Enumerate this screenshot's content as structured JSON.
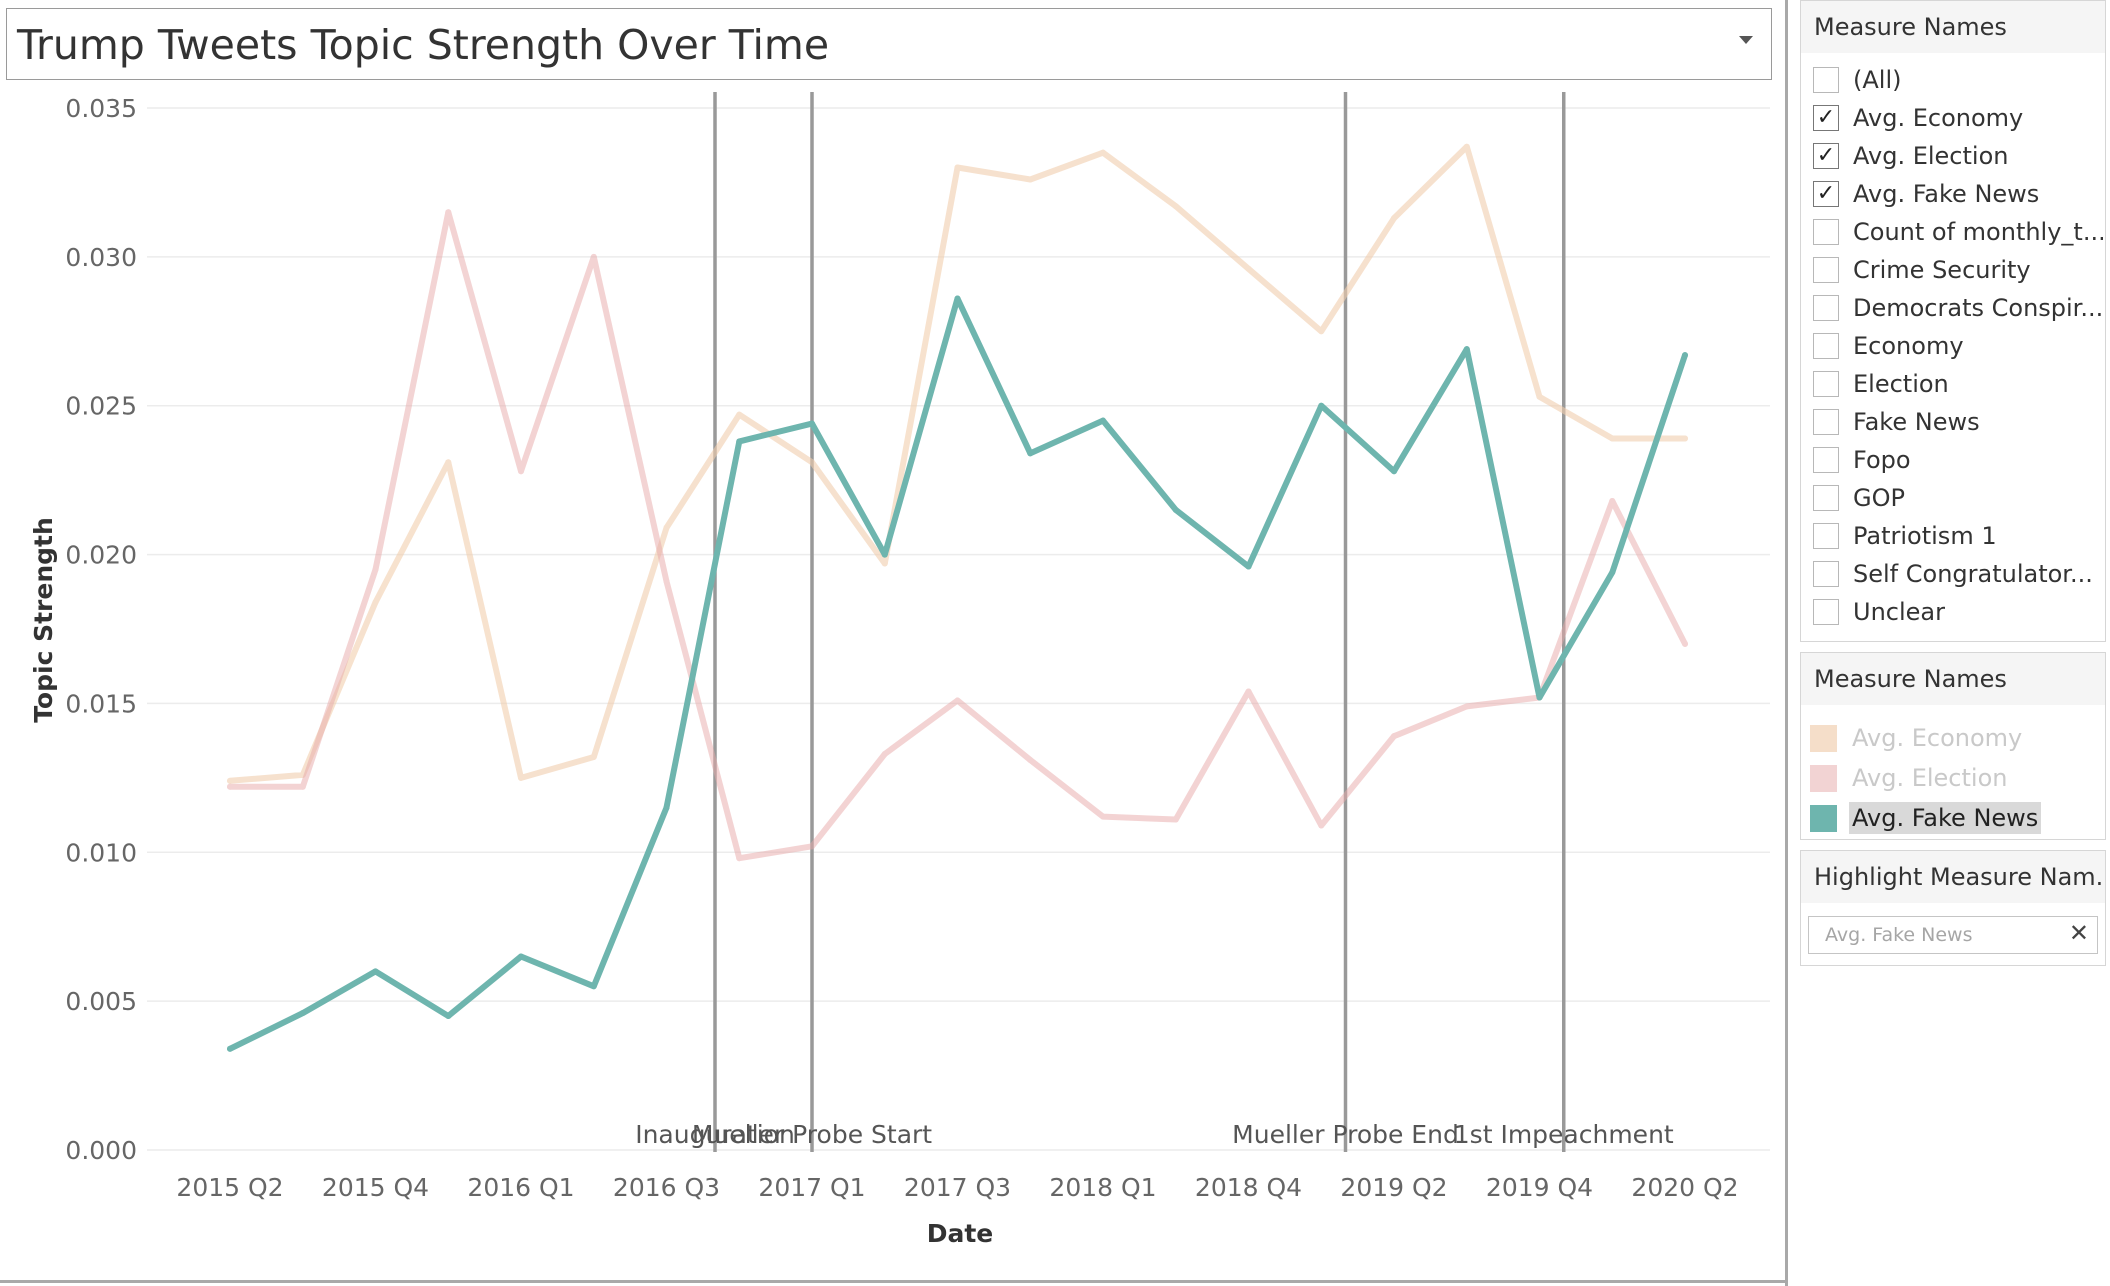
{
  "title": "Trump Tweets Topic Strength Over Time",
  "chart_data": {
    "type": "line",
    "title": "Trump Tweets Topic Strength Over Time",
    "xlabel": "Date",
    "ylabel": "Topic Strength",
    "ylim": [
      0,
      0.035
    ],
    "grid": true,
    "x_tick_labels": [
      "2015 Q2",
      "2015 Q4",
      "2016 Q1",
      "2016 Q3",
      "2017 Q1",
      "2017 Q3",
      "2018 Q1",
      "2018 Q4",
      "2019 Q2",
      "2019 Q4",
      "2020 Q2"
    ],
    "y_tick_labels": [
      "0.000",
      "0.005",
      "0.010",
      "0.015",
      "0.020",
      "0.025",
      "0.030",
      "0.035"
    ],
    "x": [
      "2015-05",
      "2015-08",
      "2015-11",
      "2016-02",
      "2016-05",
      "2016-08",
      "2016-11",
      "2017-02",
      "2017-05",
      "2017-08",
      "2017-11",
      "2018-02",
      "2018-05",
      "2018-08",
      "2018-11",
      "2019-02",
      "2019-05",
      "2019-08",
      "2019-11",
      "2020-02",
      "2020-05"
    ],
    "series": [
      {
        "name": "Avg. Economy",
        "color": "#f1ceae",
        "opacity": 0.6,
        "values": [
          0.0124,
          0.0126,
          0.0184,
          0.0231,
          0.0125,
          0.0132,
          0.0209,
          0.0247,
          0.0231,
          0.0197,
          0.033,
          0.0326,
          0.0335,
          0.0317,
          0.0296,
          0.0275,
          0.0313,
          0.0337,
          0.0253,
          0.0239,
          0.0239
        ]
      },
      {
        "name": "Avg. Election",
        "color": "#e8a9a9",
        "opacity": 0.5,
        "values": [
          0.0122,
          0.0122,
          0.0195,
          0.0315,
          0.0228,
          0.03,
          0.0191,
          0.0098,
          0.0102,
          0.0133,
          0.0151,
          0.0131,
          0.0112,
          0.0111,
          0.0154,
          0.0109,
          0.0139,
          0.0149,
          0.0152,
          0.0218,
          0.017
        ]
      },
      {
        "name": "Avg. Fake News",
        "color": "#6eb5ae",
        "opacity": 1,
        "values": [
          0.0034,
          0.0046,
          0.006,
          0.0045,
          0.0065,
          0.0055,
          0.0115,
          0.0238,
          0.0244,
          0.02,
          0.0286,
          0.0234,
          0.0245,
          0.0215,
          0.0196,
          0.025,
          0.0228,
          0.0269,
          0.0152,
          0.0194,
          0.0267
        ]
      }
    ],
    "annotations": [
      {
        "label": "Inauguration",
        "x": "2017-01"
      },
      {
        "label": "Mueller Probe Start",
        "x": "2017-05"
      },
      {
        "label": "Mueller Probe End",
        "x": "2019-03"
      },
      {
        "label": "1st Impeachment",
        "x": "2019-12"
      }
    ]
  },
  "filter_panel": {
    "title": "Measure Names",
    "items": [
      {
        "label": "(All)",
        "checked": false
      },
      {
        "label": "Avg. Economy",
        "checked": true
      },
      {
        "label": "Avg. Election",
        "checked": true
      },
      {
        "label": "Avg. Fake News",
        "checked": true
      },
      {
        "label": "Count of monthly_t...",
        "checked": false
      },
      {
        "label": "Crime Security",
        "checked": false
      },
      {
        "label": "Democrats Conspir...",
        "checked": false
      },
      {
        "label": "Economy",
        "checked": false
      },
      {
        "label": "Election",
        "checked": false
      },
      {
        "label": "Fake News",
        "checked": false
      },
      {
        "label": "Fopo",
        "checked": false
      },
      {
        "label": "GOP",
        "checked": false
      },
      {
        "label": "Patriotism 1",
        "checked": false
      },
      {
        "label": "Self Congratulator...",
        "checked": false
      },
      {
        "label": "Unclear",
        "checked": false
      }
    ]
  },
  "legend_panel": {
    "title": "Measure Names",
    "items": [
      {
        "label": "Avg. Economy",
        "color": "#f5dec9",
        "state": "dim"
      },
      {
        "label": "Avg. Election",
        "color": "#f2d3d3",
        "state": "dim"
      },
      {
        "label": "Avg. Fake News",
        "color": "#6eb5ae",
        "state": "active"
      }
    ]
  },
  "highlight_panel": {
    "title": "Highlight Measure Nam...",
    "value": "Avg. Fake News"
  }
}
